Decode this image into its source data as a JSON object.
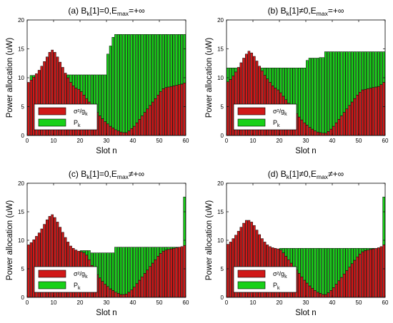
{
  "figure": {
    "ylabel": "Power allocation (uW)",
    "xlabel": "Slot n",
    "legend": {
      "noise": "σ²/g",
      "noise_sub": "k",
      "power": "P",
      "power_sub": "k"
    }
  },
  "colors": {
    "noise": "#d01818",
    "power": "#18d018",
    "bar_edge": "#000000",
    "axis": "#000000"
  },
  "chart_data": [
    {
      "type": "bar",
      "stacked": true,
      "title": {
        "a": "(a) B",
        "b": "k",
        "c": "[1]=0,E",
        "d": "max",
        "e": "=+∞"
      },
      "xlim": [
        0,
        60
      ],
      "ylim": [
        0,
        20
      ],
      "xticks": [
        0,
        10,
        20,
        30,
        40,
        50,
        60
      ],
      "yticks": [
        0,
        5,
        10,
        15,
        20
      ],
      "x": [
        1,
        2,
        3,
        4,
        5,
        6,
        7,
        8,
        9,
        10,
        11,
        12,
        13,
        14,
        15,
        16,
        17,
        18,
        19,
        20,
        21,
        22,
        23,
        24,
        25,
        26,
        27,
        28,
        29,
        30,
        31,
        32,
        33,
        34,
        35,
        36,
        37,
        38,
        39,
        40,
        41,
        42,
        43,
        44,
        45,
        46,
        47,
        48,
        49,
        50,
        51,
        52,
        53,
        54,
        55,
        56,
        57,
        58,
        59,
        60
      ],
      "series": [
        {
          "name": "σ²/g_k",
          "values": [
            9.2,
            9.6,
            10.1,
            10.7,
            11.3,
            12.0,
            12.8,
            13.6,
            14.4,
            14.8,
            14.4,
            13.6,
            12.7,
            11.8,
            10.8,
            10.0,
            9.2,
            8.6,
            8.2,
            8.0,
            7.6,
            7.0,
            6.4,
            5.8,
            5.2,
            4.6,
            4.0,
            3.4,
            2.9,
            2.4,
            2.0,
            1.6,
            1.3,
            1.0,
            0.8,
            0.6,
            0.5,
            0.5,
            0.8,
            1.2,
            1.6,
            2.2,
            2.8,
            3.4,
            4.0,
            4.6,
            5.2,
            5.8,
            6.4,
            7.0,
            7.6,
            8.1,
            8.3,
            8.4,
            8.5,
            8.6,
            8.7,
            8.8,
            8.9,
            9.1
          ]
        },
        {
          "name": "P_k",
          "values": [
            0.0,
            0.8,
            0.3,
            0.0,
            0.0,
            0.0,
            0.0,
            0.0,
            0.0,
            0.0,
            0.0,
            0.0,
            0.0,
            0.0,
            0.0,
            0.5,
            1.3,
            1.9,
            2.3,
            2.5,
            2.9,
            3.5,
            4.1,
            4.7,
            5.3,
            5.9,
            6.5,
            7.1,
            7.6,
            8.1,
            12.1,
            13.9,
            15.7,
            16.5,
            16.7,
            16.9,
            17.0,
            17.0,
            16.7,
            16.3,
            15.9,
            15.3,
            14.7,
            14.1,
            13.5,
            12.9,
            12.3,
            11.7,
            11.1,
            10.5,
            9.9,
            9.4,
            9.2,
            9.1,
            9.0,
            8.9,
            8.8,
            8.7,
            8.6,
            8.4
          ]
        }
      ]
    },
    {
      "type": "bar",
      "stacked": true,
      "title": {
        "a": "(b) B",
        "b": "k",
        "c": "[1]≠0,E",
        "d": "max",
        "e": "=+∞"
      },
      "xlim": [
        0,
        60
      ],
      "ylim": [
        0,
        20
      ],
      "xticks": [
        0,
        10,
        20,
        30,
        40,
        50,
        60
      ],
      "yticks": [
        0,
        5,
        10,
        15,
        20
      ],
      "x": [
        1,
        2,
        3,
        4,
        5,
        6,
        7,
        8,
        9,
        10,
        11,
        12,
        13,
        14,
        15,
        16,
        17,
        18,
        19,
        20,
        21,
        22,
        23,
        24,
        25,
        26,
        27,
        28,
        29,
        30,
        31,
        32,
        33,
        34,
        35,
        36,
        37,
        38,
        39,
        40,
        41,
        42,
        43,
        44,
        45,
        46,
        47,
        48,
        49,
        50,
        51,
        52,
        53,
        54,
        55,
        56,
        57,
        58,
        59,
        60
      ],
      "series": [
        {
          "name": "σ²/g_k",
          "values": [
            9.3,
            9.7,
            10.3,
            11.0,
            11.8,
            12.6,
            13.4,
            14.1,
            14.6,
            14.3,
            13.7,
            12.9,
            12.0,
            11.2,
            10.4,
            9.8,
            9.2,
            8.6,
            8.2,
            7.9,
            7.4,
            6.8,
            6.2,
            5.6,
            5.0,
            4.4,
            3.8,
            3.2,
            2.7,
            2.2,
            1.8,
            1.4,
            1.1,
            0.8,
            0.6,
            0.5,
            0.4,
            0.4,
            0.7,
            1.1,
            1.6,
            2.2,
            2.8,
            3.4,
            4.0,
            4.6,
            5.2,
            5.8,
            6.4,
            7.0,
            7.5,
            7.9,
            8.0,
            8.1,
            8.2,
            8.3,
            8.4,
            8.5,
            8.8,
            9.2
          ]
        },
        {
          "name": "P_k",
          "values": [
            2.4,
            2.0,
            1.4,
            0.7,
            0.0,
            0.0,
            0.0,
            0.0,
            0.0,
            0.0,
            0.0,
            0.0,
            0.0,
            0.5,
            1.3,
            1.9,
            2.5,
            3.1,
            3.5,
            3.8,
            4.3,
            4.9,
            5.5,
            6.1,
            6.7,
            7.3,
            7.9,
            8.5,
            9.0,
            9.5,
            11.2,
            12.0,
            12.3,
            12.6,
            12.8,
            13.0,
            13.1,
            14.1,
            13.8,
            13.4,
            12.9,
            12.3,
            11.7,
            11.1,
            10.5,
            9.9,
            9.3,
            8.7,
            8.1,
            7.5,
            7.0,
            6.6,
            6.5,
            6.4,
            6.3,
            6.2,
            6.1,
            6.0,
            5.7,
            5.3
          ]
        }
      ]
    },
    {
      "type": "bar",
      "stacked": true,
      "title": {
        "a": "(c) B",
        "b": "k",
        "c": "[1]=0,E",
        "d": "max",
        "e": "≠+∞"
      },
      "xlim": [
        0,
        60
      ],
      "ylim": [
        0,
        20
      ],
      "xticks": [
        0,
        10,
        20,
        30,
        40,
        50,
        60
      ],
      "yticks": [
        0,
        5,
        10,
        15,
        20
      ],
      "x": [
        1,
        2,
        3,
        4,
        5,
        6,
        7,
        8,
        9,
        10,
        11,
        12,
        13,
        14,
        15,
        16,
        17,
        18,
        19,
        20,
        21,
        22,
        23,
        24,
        25,
        26,
        27,
        28,
        29,
        30,
        31,
        32,
        33,
        34,
        35,
        36,
        37,
        38,
        39,
        40,
        41,
        42,
        43,
        44,
        45,
        46,
        47,
        48,
        49,
        50,
        51,
        52,
        53,
        54,
        55,
        56,
        57,
        58,
        59,
        60
      ],
      "series": [
        {
          "name": "σ²/g_k",
          "values": [
            9.2,
            9.6,
            10.1,
            10.7,
            11.3,
            12.0,
            12.8,
            13.6,
            14.2,
            14.5,
            14.0,
            13.2,
            12.3,
            11.4,
            10.5,
            9.7,
            9.0,
            8.6,
            8.3,
            8.1,
            8.0,
            7.8,
            7.4,
            6.6,
            5.6,
            4.8,
            4.0,
            3.4,
            2.8,
            2.3,
            1.9,
            1.5,
            1.2,
            0.9,
            0.7,
            0.5,
            0.5,
            0.6,
            0.9,
            1.3,
            1.8,
            2.4,
            3.0,
            3.6,
            4.2,
            4.8,
            5.4,
            6.0,
            6.6,
            7.2,
            7.7,
            8.1,
            8.3,
            8.4,
            8.5,
            8.6,
            8.7,
            8.8,
            8.9,
            9.1
          ]
        },
        {
          "name": "P_k",
          "values": [
            0.0,
            0.0,
            0.0,
            0.0,
            0.0,
            0.0,
            0.0,
            0.0,
            0.0,
            0.0,
            0.0,
            0.0,
            0.0,
            0.0,
            0.0,
            0.0,
            0.0,
            0.0,
            0.0,
            0.0,
            0.2,
            0.4,
            0.8,
            1.6,
            2.2,
            3.0,
            3.8,
            4.4,
            5.0,
            5.5,
            5.9,
            6.3,
            6.6,
            7.9,
            8.1,
            8.3,
            8.3,
            8.2,
            7.9,
            7.5,
            7.0,
            6.4,
            5.8,
            5.2,
            4.6,
            4.0,
            3.4,
            2.8,
            2.2,
            1.6,
            1.1,
            0.7,
            0.5,
            0.4,
            0.3,
            0.2,
            0.1,
            0.0,
            0.0,
            8.5
          ]
        }
      ]
    },
    {
      "type": "bar",
      "stacked": true,
      "title": {
        "a": "(d) B",
        "b": "k",
        "c": "[1]≠0,E",
        "d": "max",
        "e": "≠+∞"
      },
      "xlim": [
        0,
        60
      ],
      "ylim": [
        0,
        20
      ],
      "xticks": [
        0,
        10,
        20,
        30,
        40,
        50,
        60
      ],
      "yticks": [
        0,
        5,
        10,
        15,
        20
      ],
      "x": [
        1,
        2,
        3,
        4,
        5,
        6,
        7,
        8,
        9,
        10,
        11,
        12,
        13,
        14,
        15,
        16,
        17,
        18,
        19,
        20,
        21,
        22,
        23,
        24,
        25,
        26,
        27,
        28,
        29,
        30,
        31,
        32,
        33,
        34,
        35,
        36,
        37,
        38,
        39,
        40,
        41,
        42,
        43,
        44,
        45,
        46,
        47,
        48,
        49,
        50,
        51,
        52,
        53,
        54,
        55,
        56,
        57,
        58,
        59,
        60
      ],
      "series": [
        {
          "name": "σ²/g_k",
          "values": [
            9.3,
            9.7,
            10.3,
            10.9,
            11.6,
            12.3,
            13.0,
            13.5,
            13.5,
            13.2,
            12.6,
            11.8,
            11.0,
            10.3,
            9.7,
            9.2,
            8.9,
            8.7,
            8.6,
            8.5,
            8.3,
            7.8,
            7.2,
            6.6,
            6.0,
            5.4,
            4.8,
            4.2,
            3.6,
            3.0,
            2.5,
            2.0,
            1.6,
            1.2,
            0.9,
            0.7,
            0.5,
            0.5,
            0.8,
            1.2,
            1.7,
            2.3,
            2.9,
            3.5,
            4.1,
            4.7,
            5.3,
            5.9,
            6.5,
            7.1,
            7.6,
            8.0,
            8.2,
            8.3,
            8.4,
            8.5,
            8.6,
            8.7,
            8.9,
            9.2
          ]
        },
        {
          "name": "P_k",
          "values": [
            0.0,
            0.0,
            0.0,
            0.0,
            0.0,
            0.0,
            0.0,
            0.0,
            0.0,
            0.0,
            0.0,
            0.0,
            0.0,
            0.0,
            0.0,
            0.0,
            0.0,
            0.0,
            0.0,
            0.0,
            0.3,
            0.8,
            1.4,
            2.0,
            2.6,
            3.2,
            3.8,
            4.4,
            5.0,
            5.6,
            6.1,
            6.6,
            7.0,
            7.4,
            7.7,
            7.9,
            8.1,
            8.1,
            7.8,
            7.4,
            6.9,
            6.3,
            5.7,
            5.1,
            4.5,
            3.9,
            3.3,
            2.7,
            2.1,
            1.5,
            1.0,
            0.6,
            0.4,
            0.3,
            0.2,
            0.1,
            0.0,
            0.0,
            0.0,
            8.4
          ]
        }
      ]
    }
  ]
}
